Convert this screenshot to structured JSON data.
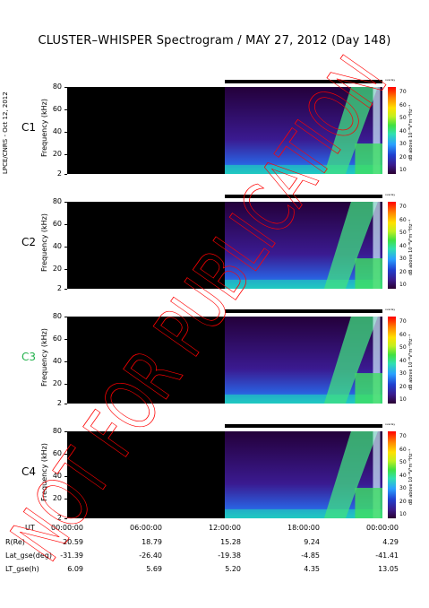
{
  "title": "CLUSTER–WHISPER Spectrogram / MAY 27, 2012 (Day 148)",
  "side_label": "LPCE/CNRS - Oct 12, 2012",
  "watermark": "NOT FOR PUBLICATION",
  "colors": {
    "panel_bg": "#000000",
    "title_text": "#000000",
    "c3_label": "#22b14c",
    "watermark": "#ff0000"
  },
  "colorbar": {
    "ticks": [
      "70",
      "60",
      "50",
      "40",
      "30",
      "20",
      "10"
    ],
    "unit": "dB above 10⁻⁸V²m⁻²Hz⁻¹",
    "overlay_label": "overlay"
  },
  "chart_data": [
    {
      "type": "heatmap",
      "panel": "C1",
      "label_color": "#000000",
      "ylabel": "Frequency (kHz)",
      "yticks": [
        "80",
        "60",
        "40",
        "20",
        "2"
      ],
      "ylim": [
        2,
        80
      ],
      "data_start_hours": 12.0,
      "data_end_hours": 24.0,
      "clim": [
        10,
        70
      ]
    },
    {
      "type": "heatmap",
      "panel": "C2",
      "label_color": "#000000",
      "ylabel": "Frequency (kHz)",
      "yticks": [
        "80",
        "60",
        "40",
        "20",
        "2"
      ],
      "ylim": [
        2,
        80
      ],
      "data_start_hours": 12.0,
      "data_end_hours": 24.0,
      "clim": [
        10,
        70
      ]
    },
    {
      "type": "heatmap",
      "panel": "C3",
      "label_color": "#22b14c",
      "ylabel": "Frequency (kHz)",
      "yticks": [
        "80",
        "60",
        "40",
        "20",
        "2"
      ],
      "ylim": [
        2,
        80
      ],
      "data_start_hours": 12.0,
      "data_end_hours": 24.0,
      "clim": [
        10,
        70
      ]
    },
    {
      "type": "heatmap",
      "panel": "C4",
      "label_color": "#000000",
      "ylabel": "Frequency (kHz)",
      "yticks": [
        "80",
        "60",
        "40",
        "20",
        "2"
      ],
      "ylim": [
        2,
        80
      ],
      "data_start_hours": 12.0,
      "data_end_hours": 24.0,
      "clim": [
        10,
        70
      ]
    }
  ],
  "xaxis": {
    "name": "UT",
    "ticks": [
      "00:00:00",
      "06:00:00",
      "12:00:00",
      "18:00:00",
      "00:00:00"
    ]
  },
  "ephemeris": [
    {
      "label": "R(Re)",
      "values": [
        "20.59",
        "18.79",
        "15.28",
        "9.24",
        "4.29"
      ]
    },
    {
      "label": "Lat_gse(deg)",
      "values": [
        "-31.39",
        "-26.40",
        "-19.38",
        "-4.85",
        "-41.41"
      ]
    },
    {
      "label": "LT_gse(h)",
      "values": [
        "6.09",
        "5.69",
        "5.20",
        "4.35",
        "13.05"
      ]
    }
  ]
}
